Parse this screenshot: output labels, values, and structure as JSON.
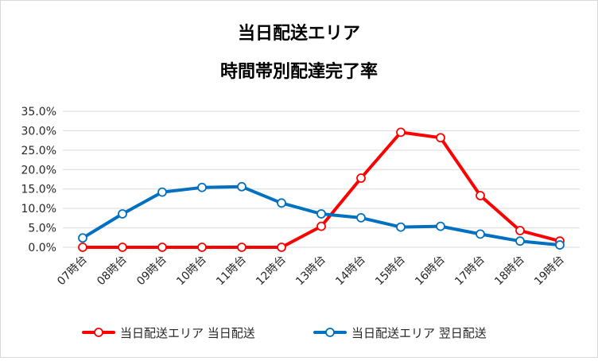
{
  "chart_data": {
    "type": "line",
    "title_lines": [
      "当日配送エリア",
      "時間帯別配達完了率"
    ],
    "categories": [
      "07時台",
      "08時台",
      "09時台",
      "10時台",
      "11時台",
      "12時台",
      "13時台",
      "14時台",
      "15時台",
      "16時台",
      "17時台",
      "18時台",
      "19時台"
    ],
    "yticks": [
      "35.0%",
      "30.0%",
      "25.0%",
      "20.0%",
      "15.0%",
      "10.0%",
      "5.0%",
      "0.0%"
    ],
    "ylim": [
      0,
      35
    ],
    "grid": true,
    "legend_position": "bottom",
    "series": [
      {
        "name": "当日配送エリア 当日配送",
        "color": "#ff0000",
        "values": [
          0.0,
          0.0,
          0.0,
          0.0,
          0.0,
          0.0,
          5.4,
          17.8,
          29.6,
          28.2,
          13.3,
          4.3,
          1.6
        ]
      },
      {
        "name": "当日配送エリア 翌日配送",
        "color": "#0070c0",
        "values": [
          2.4,
          8.6,
          14.2,
          15.4,
          15.6,
          11.4,
          8.6,
          7.6,
          5.2,
          5.4,
          3.4,
          1.6,
          0.6
        ]
      }
    ]
  }
}
